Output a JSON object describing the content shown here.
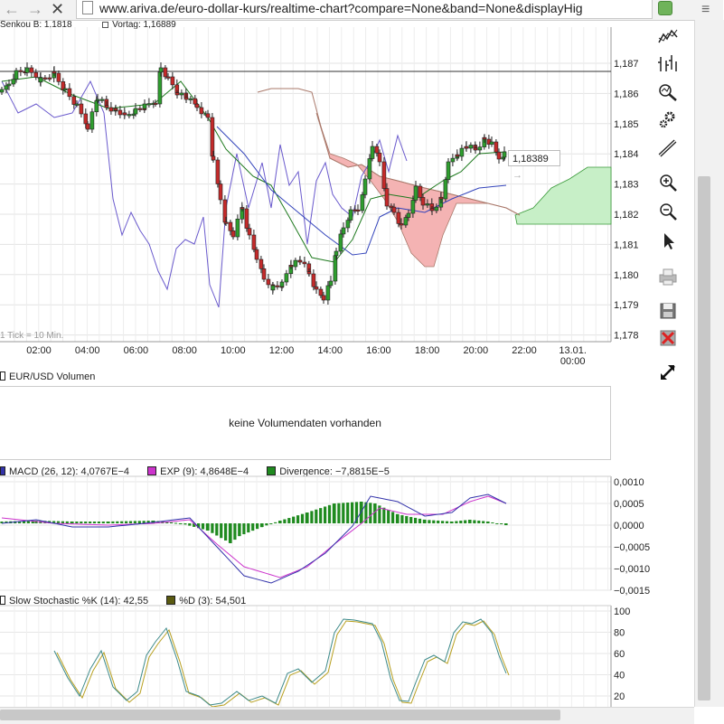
{
  "browser": {
    "url": "www.ariva.de/euro-dollar-kurs/realtime-chart?compare=None&band=None&displayHig",
    "icons": [
      "back-arrow-icon",
      "forward-arrow-icon",
      "stop-icon",
      "page-icon",
      "extension-icon",
      "menu-icon"
    ]
  },
  "main_chart": {
    "legend_senkou": "Senkou B: 1,1818",
    "legend_vortag": "Vortag: 1,16889",
    "tick_note": "1 Tick = 10 Min.",
    "last_price": "1,18389",
    "y_ticks": [
      "1,187",
      "1,186",
      "1,185",
      "1,184",
      "1,183",
      "1,182",
      "1,181",
      "1,180",
      "1,179",
      "1,178"
    ],
    "x_ticks": [
      "02:00",
      "04:00",
      "06:00",
      "08:00",
      "10:00",
      "12:00",
      "14:00",
      "16:00",
      "18:00",
      "20:00",
      "22:00",
      "13.01."
    ],
    "x_tick_sub": "00:00"
  },
  "volume_panel": {
    "title": "EUR/USD Volumen",
    "message": "keine Volumendaten vorhanden"
  },
  "macd_panel": {
    "legend_macd": "MACD (26, 12): 4,0767E−4",
    "legend_exp": "EXP (9): 4,8648E−4",
    "legend_div": "Divergence: −7,8815E−5",
    "y_ticks": [
      "0,0010",
      "0,0005",
      "0,0000",
      "−0,0005",
      "−0,0010",
      "−0,0015"
    ]
  },
  "stoch_panel": {
    "legend_k": "Slow Stochastic %K (14): 42,55",
    "legend_d": "%D (3): 54,501",
    "y_ticks": [
      "100",
      "80",
      "60",
      "40",
      "20"
    ]
  },
  "toolbar": {
    "icons": [
      "line-chart-icon",
      "bar-chart-icon",
      "indicator-search-icon",
      "settings-icon",
      "draw-tool-icon",
      "zoom-in-icon",
      "zoom-out-icon",
      "pointer-icon",
      "print-icon",
      "save-icon",
      "delete-icon",
      "fullscreen-icon"
    ]
  },
  "colors": {
    "candle_up": "#2e9e2e",
    "candle_down": "#c42a2a",
    "macd_line": "#3333aa",
    "exp_line": "#cc33cc",
    "divergence_bars": "#1f8a1f",
    "cloud_bear": "#f4b3b3",
    "cloud_bull": "#c7efc7",
    "stoch_k": "#3d8a8a",
    "stoch_d": "#b8a020"
  }
}
